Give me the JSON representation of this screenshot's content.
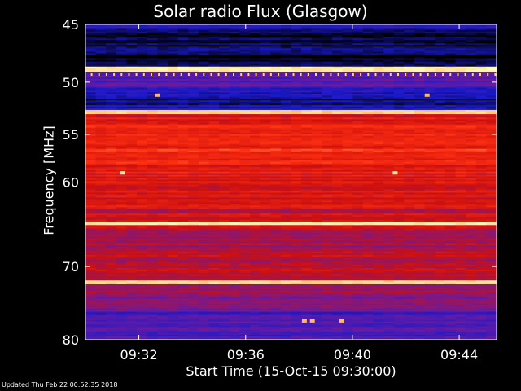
{
  "chart_data": {
    "type": "heatmap",
    "title": "Solar radio Flux (Glasgow)",
    "xlabel": "Start Time (15-Oct-15 09:30:00)",
    "ylabel": "Frequency [MHz]",
    "x_ticks": [
      {
        "label": "09:32",
        "value_min": 2
      },
      {
        "label": "09:36",
        "value_min": 6
      },
      {
        "label": "09:40",
        "value_min": 10
      },
      {
        "label": "09:44",
        "value_min": 14
      }
    ],
    "y_ticks": [
      45,
      50,
      55,
      60,
      70,
      80
    ],
    "xlim_min": [
      0,
      15.4
    ],
    "ylim_mhz": [
      45,
      80
    ],
    "y_scale": "log",
    "bands": [
      {
        "from": 45,
        "to": 45.6,
        "level": 0.15
      },
      {
        "from": 45.6,
        "to": 48.6,
        "level": 0.05
      },
      {
        "from": 48.6,
        "to": 49.1,
        "level": 0.95
      },
      {
        "from": 49.1,
        "to": 50.5,
        "level": 0.3
      },
      {
        "from": 50.5,
        "to": 52.6,
        "level": 0.12
      },
      {
        "from": 52.6,
        "to": 53.0,
        "level": 0.9
      },
      {
        "from": 53.0,
        "to": 54.0,
        "level": 0.55
      },
      {
        "from": 54.0,
        "to": 58.0,
        "level": 0.62
      },
      {
        "from": 58.0,
        "to": 63.0,
        "level": 0.55
      },
      {
        "from": 63.0,
        "to": 64.5,
        "level": 0.5
      },
      {
        "from": 64.5,
        "to": 64.9,
        "level": 0.95
      },
      {
        "from": 64.9,
        "to": 70.0,
        "level": 0.45
      },
      {
        "from": 70.0,
        "to": 71.8,
        "level": 0.5
      },
      {
        "from": 71.8,
        "to": 72.3,
        "level": 0.92
      },
      {
        "from": 72.3,
        "to": 76.0,
        "level": 0.4
      },
      {
        "from": 76.0,
        "to": 80.0,
        "level": 0.25
      }
    ],
    "features": [
      {
        "time_min": 1.4,
        "freq_mhz": 59.0,
        "level": 0.95
      },
      {
        "time_min": 11.6,
        "freq_mhz": 59.0,
        "level": 0.95
      },
      {
        "time_min": 2.7,
        "freq_mhz": 51.2,
        "level": 0.85
      },
      {
        "time_min": 12.8,
        "freq_mhz": 51.2,
        "level": 0.85
      },
      {
        "time_min": 8.2,
        "freq_mhz": 77.3,
        "level": 0.85
      },
      {
        "time_min": 8.5,
        "freq_mhz": 77.3,
        "level": 0.85
      },
      {
        "time_min": 9.6,
        "freq_mhz": 77.3,
        "level": 0.85
      }
    ],
    "colormap": [
      "#000000",
      "#1a1acc",
      "#6a1aa0",
      "#cc1010",
      "#ff3010",
      "#ffb060",
      "#ffffc0"
    ],
    "footer": "Updated Thu Feb 22 00:52:35 2018"
  }
}
